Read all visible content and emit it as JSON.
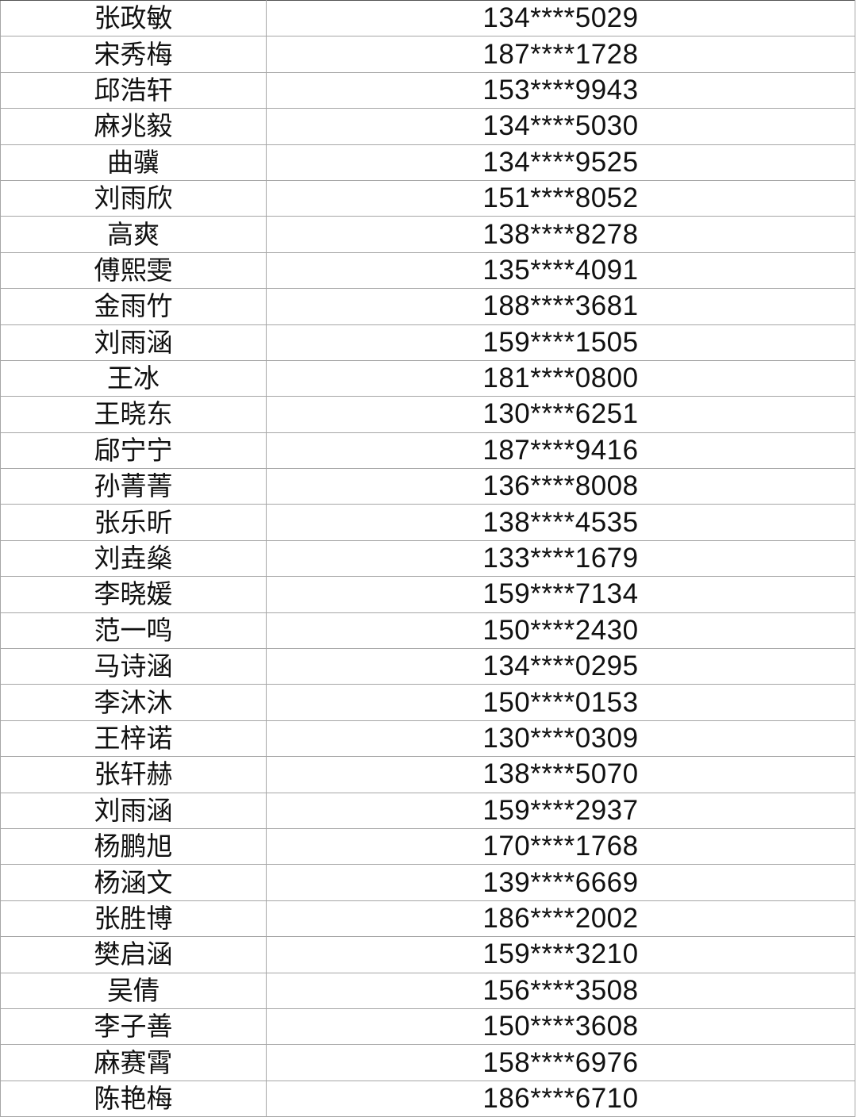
{
  "rows": [
    {
      "name": "张政敏",
      "phone": "134****5029"
    },
    {
      "name": "宋秀梅",
      "phone": "187****1728"
    },
    {
      "name": "邱浩轩",
      "phone": "153****9943"
    },
    {
      "name": "麻兆毅",
      "phone": "134****5030"
    },
    {
      "name": "曲骥",
      "phone": "134****9525"
    },
    {
      "name": "刘雨欣",
      "phone": "151****8052"
    },
    {
      "name": "高爽",
      "phone": "138****8278"
    },
    {
      "name": "傅熙雯",
      "phone": "135****4091"
    },
    {
      "name": "金雨竹",
      "phone": "188****3681"
    },
    {
      "name": "刘雨涵",
      "phone": "159****1505"
    },
    {
      "name": "王冰",
      "phone": "181****0800"
    },
    {
      "name": "王晓东",
      "phone": "130****6251"
    },
    {
      "name": "郈宁宁",
      "phone": "187****9416"
    },
    {
      "name": "孙菁菁",
      "phone": "136****8008"
    },
    {
      "name": "张乐昕",
      "phone": "138****4535"
    },
    {
      "name": "刘垚燊",
      "phone": "133****1679"
    },
    {
      "name": "李晓媛",
      "phone": "159****7134"
    },
    {
      "name": "范一鸣",
      "phone": "150****2430"
    },
    {
      "name": "马诗涵",
      "phone": "134****0295"
    },
    {
      "name": "李沐沐",
      "phone": "150****0153"
    },
    {
      "name": "王梓诺",
      "phone": "130****0309"
    },
    {
      "name": "张轩赫",
      "phone": "138****5070"
    },
    {
      "name": "刘雨涵",
      "phone": "159****2937"
    },
    {
      "name": "杨鹏旭",
      "phone": "170****1768"
    },
    {
      "name": "杨涵文",
      "phone": "139****6669"
    },
    {
      "name": "张胜博",
      "phone": "186****2002"
    },
    {
      "name": "樊启涵",
      "phone": "159****3210"
    },
    {
      "name": "吴倩",
      "phone": "156****3508"
    },
    {
      "name": "李子善",
      "phone": "150****3608"
    },
    {
      "name": "麻赛霄",
      "phone": "158****6976"
    },
    {
      "name": "陈艳梅",
      "phone": "186****6710"
    }
  ]
}
